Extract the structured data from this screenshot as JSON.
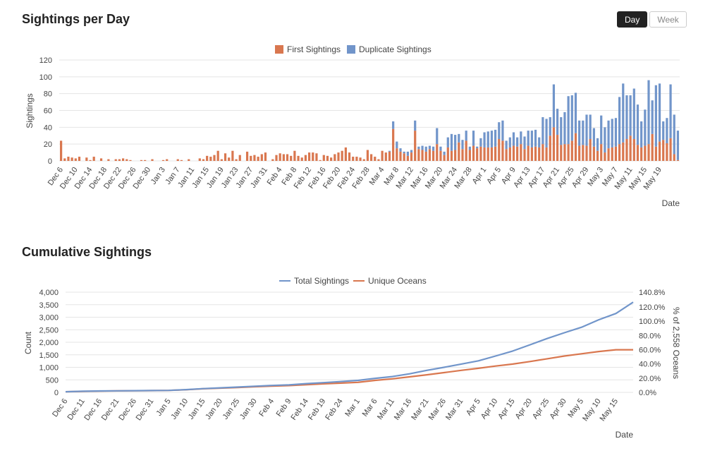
{
  "toggle": {
    "day_label": "Day",
    "week_label": "Week"
  },
  "colors": {
    "first": "#d9774f",
    "duplicate": "#7195ca",
    "total": "#7195ca",
    "unique": "#d9774f",
    "grid": "#e5e5e5"
  },
  "chart_data": [
    {
      "type": "bar",
      "stacked": true,
      "title": "Sightings per Day",
      "xlabel": "Date",
      "ylabel": "Sightings",
      "ylim": [
        0,
        120
      ],
      "yticks": [
        0,
        20,
        40,
        60,
        80,
        100,
        120
      ],
      "legend": "top-center",
      "series": [
        {
          "name": "First Sightings",
          "values": [
            24,
            3,
            5,
            4,
            3,
            5,
            0,
            4,
            1,
            5,
            0,
            3,
            0,
            2,
            0,
            2,
            2,
            3,
            2,
            1,
            0,
            0,
            1,
            1,
            0,
            2,
            0,
            0,
            1,
            2,
            0,
            0,
            2,
            1,
            0,
            2,
            0,
            0,
            3,
            2,
            6,
            5,
            7,
            12,
            2,
            9,
            4,
            12,
            2,
            7,
            0,
            11,
            6,
            7,
            5,
            8,
            10,
            0,
            2,
            7,
            9,
            8,
            8,
            6,
            12,
            6,
            4,
            7,
            10,
            10,
            9,
            1,
            7,
            6,
            4,
            8,
            10,
            12,
            16,
            10,
            5,
            5,
            4,
            2,
            13,
            8,
            5,
            2,
            12,
            10,
            11,
            38,
            15,
            11,
            9,
            6,
            10,
            36,
            14,
            13,
            11,
            14,
            12,
            20,
            12,
            7,
            16,
            12,
            13,
            22,
            14,
            24,
            13,
            18,
            15,
            17,
            16,
            16,
            16,
            17,
            26,
            24,
            14,
            16,
            18,
            17,
            20,
            14,
            18,
            16,
            17,
            16,
            20,
            16,
            30,
            40,
            31,
            19,
            20,
            20,
            24,
            33,
            18,
            19,
            18,
            26,
            17,
            12,
            20,
            10,
            15,
            16,
            17,
            20,
            22,
            26,
            30,
            26,
            19,
            16,
            18,
            20,
            32,
            17,
            23,
            25,
            21,
            27,
            8,
            1
          ]
        },
        {
          "name": "Duplicate Sightings",
          "values": [
            0,
            0,
            0,
            0,
            0,
            0,
            0,
            0,
            0,
            0,
            0,
            0,
            0,
            0,
            0,
            0,
            0,
            0,
            0,
            0,
            0,
            0,
            0,
            0,
            0,
            0,
            0,
            0,
            0,
            0,
            0,
            0,
            0,
            0,
            0,
            0,
            0,
            0,
            0,
            0,
            0,
            0,
            0,
            0,
            0,
            0,
            0,
            0,
            0,
            0,
            0,
            0,
            0,
            0,
            0,
            0,
            0,
            0,
            0,
            0,
            0,
            0,
            0,
            0,
            0,
            0,
            0,
            0,
            0,
            0,
            0,
            0,
            0,
            0,
            0,
            0,
            0,
            0,
            0,
            0,
            0,
            0,
            0,
            0,
            0,
            0,
            0,
            0,
            0,
            0,
            1,
            9,
            8,
            4,
            2,
            5,
            3,
            12,
            3,
            5,
            6,
            4,
            5,
            19,
            5,
            4,
            12,
            20,
            18,
            10,
            11,
            12,
            4,
            18,
            2,
            10,
            18,
            19,
            20,
            20,
            20,
            24,
            10,
            12,
            16,
            11,
            15,
            15,
            18,
            20,
            20,
            12,
            32,
            34,
            22,
            51,
            31,
            33,
            38,
            57,
            54,
            48,
            30,
            29,
            37,
            29,
            22,
            15,
            34,
            30,
            33,
            34,
            34,
            56,
            70,
            52,
            48,
            60,
            48,
            31,
            43,
            76,
            40,
            73,
            69,
            22,
            30,
            64,
            47,
            35,
            18,
            3
          ]
        }
      ],
      "xticklabels": [
        "Dec 6",
        "Dec 10",
        "Dec 14",
        "Dec 18",
        "Dec 22",
        "Dec 26",
        "Dec 30",
        "Jan 3",
        "Jan 7",
        "Jan 11",
        "Jan 15",
        "Jan 19",
        "Jan 23",
        "Jan 27",
        "Jan 31",
        "Feb 4",
        "Feb 8",
        "Feb 12",
        "Feb 16",
        "Feb 20",
        "Feb 24",
        "Feb 28",
        "Mar 4",
        "Mar 8",
        "Mar 12",
        "Mar 16",
        "Mar 20",
        "Mar 24",
        "Mar 28",
        "Apr 1",
        "Apr 5",
        "Apr 9",
        "Apr 13",
        "Apr 17",
        "Apr 21",
        "Apr 25",
        "Apr 29",
        "May 3",
        "May 7",
        "May 11",
        "May 15",
        "May 19"
      ]
    },
    {
      "type": "line",
      "title": "Cumulative Sightings",
      "xlabel": "Date",
      "ylabel": "Count",
      "y2label": "% of 2,558 Oceans",
      "ylim": [
        0,
        4000
      ],
      "yticks": [
        "0",
        "500",
        "1,000",
        "1,500",
        "2,000",
        "2,500",
        "3,000",
        "3,500",
        "4,000"
      ],
      "y2lim": [
        0,
        140.8
      ],
      "y2ticks": [
        "0.0%",
        "20.0%",
        "40.0%",
        "60.0%",
        "80.0%",
        "100.0%",
        "120.0%",
        "140.8%"
      ],
      "legend": "top-center",
      "xticklabels": [
        "Dec 6",
        "Dec 11",
        "Dec 16",
        "Dec 21",
        "Dec 26",
        "Dec 31",
        "Jan 5",
        "Jan 10",
        "Jan 15",
        "Jan 20",
        "Jan 25",
        "Jan 30",
        "Feb 4",
        "Feb 9",
        "Feb 14",
        "Feb 19",
        "Feb 24",
        "Mar 1",
        "Mar 6",
        "Mar 11",
        "Mar 16",
        "Mar 21",
        "Mar 26",
        "Mar 31",
        "Apr 5",
        "Apr 10",
        "Apr 15",
        "Apr 20",
        "Apr 25",
        "Apr 30",
        "May 5",
        "May 10",
        "May 15"
      ],
      "x": [
        "Dec 6",
        "Dec 11",
        "Dec 16",
        "Dec 21",
        "Dec 26",
        "Dec 31",
        "Jan 5",
        "Jan 10",
        "Jan 15",
        "Jan 20",
        "Jan 25",
        "Jan 30",
        "Feb 4",
        "Feb 9",
        "Feb 14",
        "Feb 19",
        "Feb 24",
        "Mar 1",
        "Mar 6",
        "Mar 11",
        "Mar 16",
        "Mar 21",
        "Mar 26",
        "Mar 31",
        "Apr 5",
        "Apr 10",
        "Apr 15",
        "Apr 20",
        "Apr 25",
        "Apr 30",
        "May 5",
        "May 10",
        "May 15",
        "May 20"
      ],
      "series": [
        {
          "name": "Total Sightings",
          "values": [
            24,
            45,
            55,
            62,
            68,
            72,
            80,
            110,
            150,
            180,
            210,
            245,
            275,
            300,
            350,
            390,
            430,
            480,
            560,
            630,
            740,
            880,
            1000,
            1130,
            1260,
            1450,
            1650,
            1900,
            2150,
            2380,
            2600,
            2900,
            3150,
            3600
          ]
        },
        {
          "name": "Unique Oceans",
          "values": [
            24,
            40,
            50,
            58,
            65,
            70,
            78,
            105,
            145,
            170,
            195,
            225,
            252,
            270,
            305,
            340,
            370,
            400,
            480,
            540,
            620,
            700,
            790,
            880,
            960,
            1050,
            1130,
            1230,
            1340,
            1450,
            1540,
            1630,
            1700,
            1700
          ]
        }
      ]
    }
  ]
}
